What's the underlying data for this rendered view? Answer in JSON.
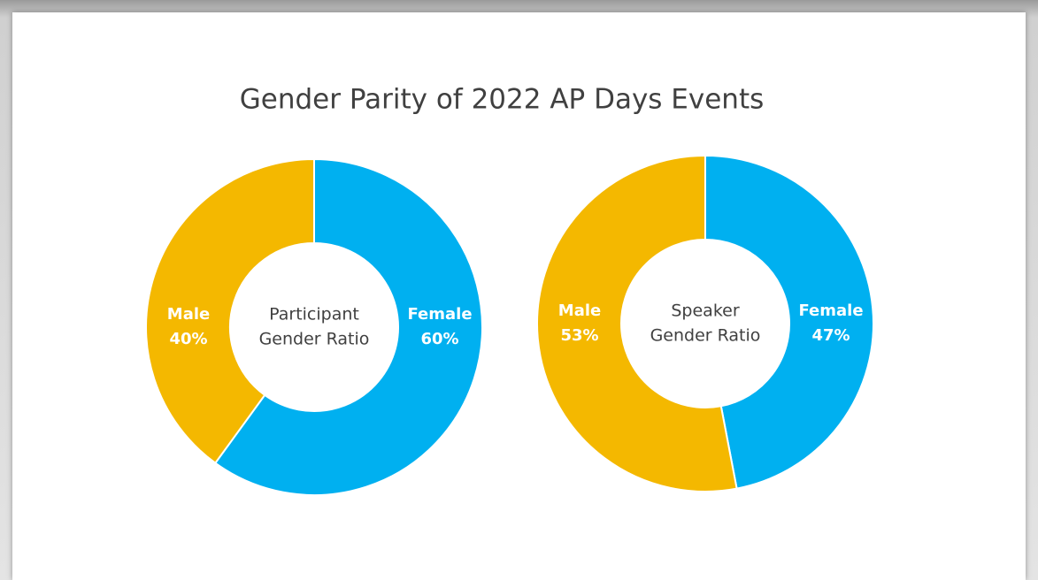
{
  "title": "Gender Parity of 2022 AP Days Events",
  "chart_data": [
    {
      "type": "donut",
      "center_label": [
        "Participant",
        "Gender Ratio"
      ],
      "categories": [
        "Female",
        "Male"
      ],
      "values": [
        60,
        40
      ],
      "value_labels": [
        "60%",
        "40%"
      ],
      "colors": [
        "#00b0f0",
        "#f4b800"
      ]
    },
    {
      "type": "donut",
      "center_label": [
        "Speaker",
        "Gender Ratio"
      ],
      "categories": [
        "Female",
        "Male"
      ],
      "values": [
        47,
        53
      ],
      "value_labels": [
        "47%",
        "53%"
      ],
      "colors": [
        "#00b0f0",
        "#f4b800"
      ]
    }
  ]
}
